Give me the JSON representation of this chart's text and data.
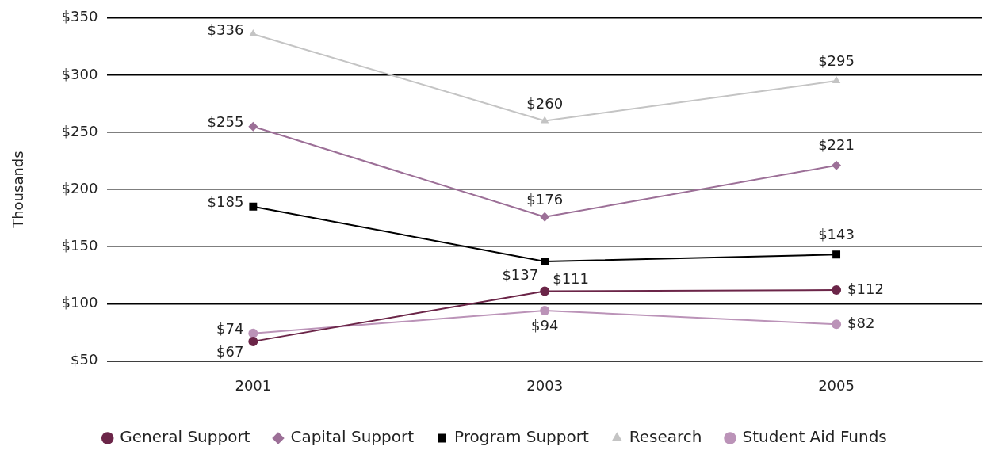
{
  "chart_data": {
    "type": "line",
    "ylabel": "Thousands",
    "categories": [
      "2001",
      "2003",
      "2005"
    ],
    "ylim": [
      50,
      350
    ],
    "yticks": [
      {
        "value": 50,
        "label": "$50"
      },
      {
        "value": 100,
        "label": "$100"
      },
      {
        "value": 150,
        "label": "$150"
      },
      {
        "value": 200,
        "label": "$200"
      },
      {
        "value": 250,
        "label": "$250"
      },
      {
        "value": 300,
        "label": "$300"
      },
      {
        "value": 350,
        "label": "$350"
      }
    ],
    "grid": "y",
    "legend": "bottom",
    "line_style": "solid",
    "series": [
      {
        "name": "General Support",
        "color": "#6b2548",
        "marker": "circle",
        "values": [
          67,
          111,
          112
        ],
        "value_labels": [
          "$67",
          "$111",
          "$112"
        ]
      },
      {
        "name": "Capital Support",
        "color": "#9c6f97",
        "marker": "diamond",
        "values": [
          255,
          176,
          221
        ],
        "value_labels": [
          "$255",
          "$176",
          "$221"
        ]
      },
      {
        "name": "Program Support",
        "color": "#000000",
        "marker": "square",
        "values": [
          185,
          137,
          143
        ],
        "value_labels": [
          "$185",
          "$137",
          "$143"
        ]
      },
      {
        "name": "Research",
        "color": "#c4c4c4",
        "marker": "triangle",
        "values": [
          336,
          260,
          295
        ],
        "value_labels": [
          "$336",
          "$260",
          "$295"
        ]
      },
      {
        "name": "Student Aid Funds",
        "color": "#bb93b8",
        "marker": "circle",
        "values": [
          74,
          94,
          82
        ],
        "value_labels": [
          "$74",
          "$94",
          "$82"
        ]
      }
    ]
  }
}
